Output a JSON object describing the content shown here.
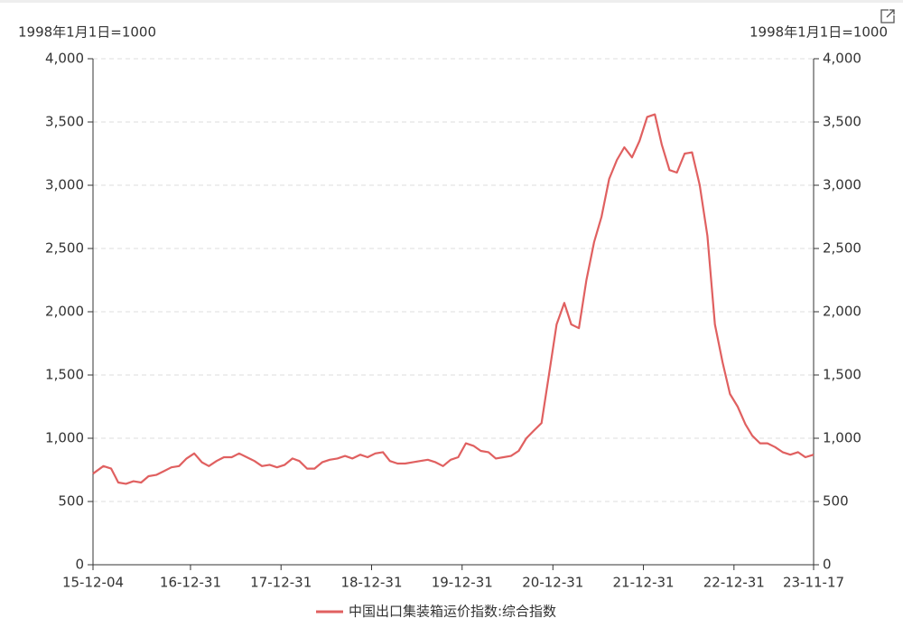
{
  "chart_data": {
    "type": "line",
    "y_label": "1998年1月1日=1000",
    "y2_label": "1998年1月1日=1000",
    "x": [
      "15-12-04",
      "16-01-15",
      "16-02-15",
      "16-03-15",
      "16-04-15",
      "16-05-15",
      "16-06-15",
      "16-07-15",
      "16-08-15",
      "16-09-15",
      "16-10-15",
      "16-11-15",
      "16-12-15",
      "17-01-15",
      "17-02-15",
      "17-03-15",
      "17-04-15",
      "17-05-15",
      "17-06-15",
      "17-07-15",
      "17-08-15",
      "17-09-15",
      "17-10-15",
      "17-11-15",
      "17-12-15",
      "18-01-15",
      "18-02-15",
      "18-03-15",
      "18-04-15",
      "18-05-15",
      "18-06-15",
      "18-07-15",
      "18-08-15",
      "18-09-15",
      "18-10-15",
      "18-11-15",
      "18-12-15",
      "19-01-15",
      "19-02-15",
      "19-03-15",
      "19-04-15",
      "19-05-15",
      "19-06-15",
      "19-07-15",
      "19-08-15",
      "19-09-15",
      "19-10-15",
      "19-11-15",
      "19-12-15",
      "20-01-15",
      "20-02-15",
      "20-03-15",
      "20-04-15",
      "20-05-15",
      "20-06-15",
      "20-07-15",
      "20-08-15",
      "20-09-15",
      "20-10-15",
      "20-11-15",
      "20-12-15",
      "21-01-15",
      "21-02-15",
      "21-03-15",
      "21-04-15",
      "21-05-15",
      "21-06-15",
      "21-07-15",
      "21-08-15",
      "21-09-15",
      "21-10-15",
      "21-11-15",
      "21-12-15",
      "22-01-15",
      "22-02-15",
      "22-03-15",
      "22-04-15",
      "22-05-15",
      "22-06-15",
      "22-07-15",
      "22-08-15",
      "22-09-15",
      "22-10-15",
      "22-11-15",
      "22-12-15",
      "23-01-15",
      "23-02-15",
      "23-03-15",
      "23-04-15",
      "23-05-15",
      "23-06-15",
      "23-07-15",
      "23-08-15",
      "23-09-15",
      "23-10-15",
      "23-11-17"
    ],
    "series": [
      {
        "name": "中国出口集装箱运价指数:综合指数",
        "color": "#e06060",
        "values": [
          720,
          780,
          760,
          650,
          640,
          660,
          650,
          700,
          710,
          740,
          770,
          780,
          840,
          880,
          810,
          780,
          820,
          850,
          850,
          880,
          850,
          820,
          780,
          790,
          770,
          790,
          840,
          820,
          760,
          760,
          810,
          830,
          840,
          860,
          840,
          870,
          850,
          880,
          890,
          820,
          800,
          800,
          810,
          820,
          830,
          810,
          780,
          830,
          850,
          960,
          940,
          900,
          890,
          840,
          850,
          860,
          900,
          1000,
          1060,
          1120,
          1500,
          1900,
          2070,
          1900,
          1870,
          2250,
          2550,
          2750,
          3050,
          3200,
          3300,
          3220,
          3350,
          3540,
          3560,
          3320,
          3120,
          3100,
          3250,
          3260,
          3000,
          2600,
          1900,
          1600,
          1350,
          1250,
          1110,
          1020,
          960,
          960,
          930,
          890,
          870,
          890,
          850,
          870
        ]
      }
    ],
    "xlim": [
      "15-12-04",
      "23-11-17"
    ],
    "xticks": [
      "15-12-04",
      "16-12-31",
      "17-12-31",
      "18-12-31",
      "19-12-31",
      "20-12-31",
      "21-12-31",
      "22-12-31",
      "23-11-17"
    ],
    "ylim": [
      0,
      4000
    ],
    "yticks": [
      0,
      500,
      {
        "value": 1000,
        "label": "1,000"
      },
      {
        "value": 1500,
        "label": "1,500"
      },
      {
        "value": 2000,
        "label": "2,000"
      },
      {
        "value": 2500,
        "label": "2,500"
      },
      {
        "value": 3000,
        "label": "3,000"
      },
      {
        "value": 3500,
        "label": "3,500"
      },
      {
        "value": 4000,
        "label": "4,000"
      }
    ],
    "y2lim": [
      0,
      4000
    ],
    "y2ticks": [
      0,
      500,
      {
        "value": 1000,
        "label": "1,000"
      },
      {
        "value": 1500,
        "label": "1,500"
      },
      {
        "value": 2000,
        "label": "2,000"
      },
      {
        "value": 2500,
        "label": "2,500"
      },
      {
        "value": 3000,
        "label": "3,000"
      },
      {
        "value": 3500,
        "label": "3,500"
      },
      {
        "value": 4000,
        "label": "4,000"
      }
    ],
    "grid": true,
    "legend": "bottom"
  }
}
